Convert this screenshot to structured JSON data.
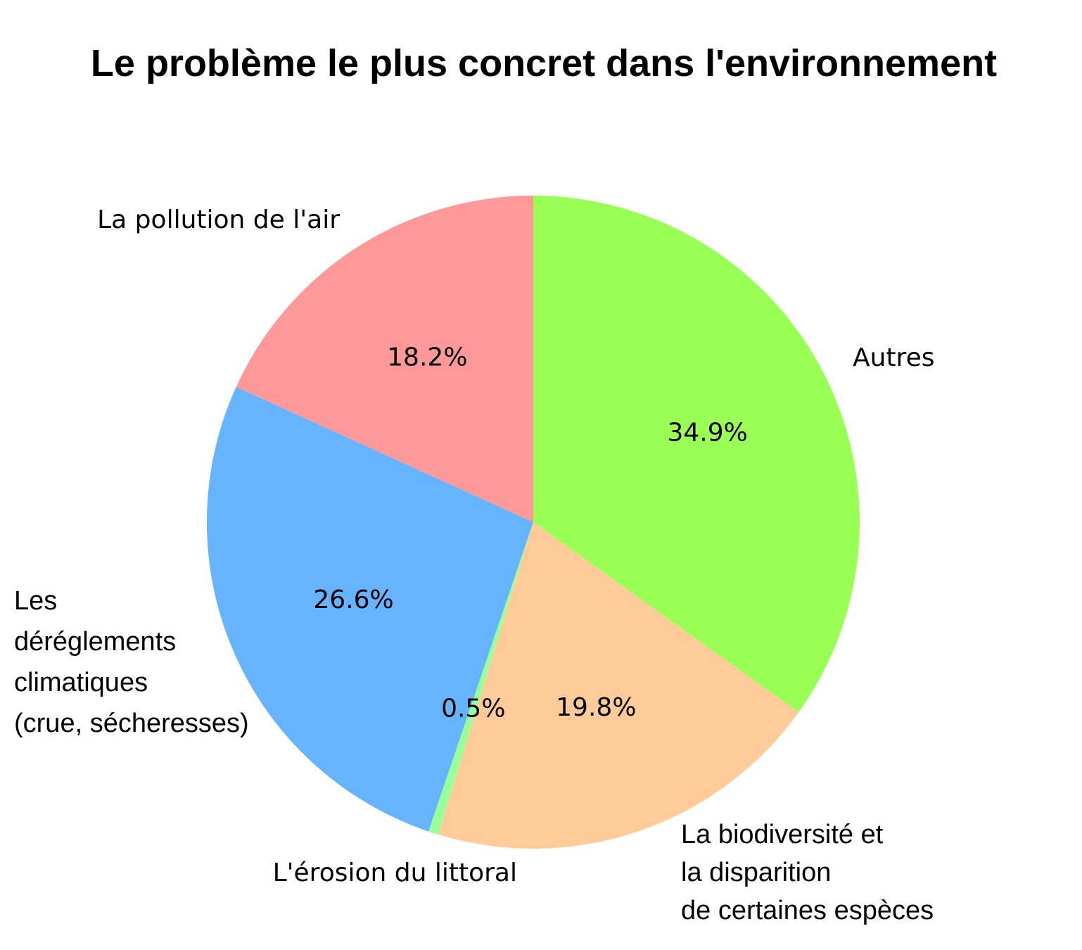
{
  "chart_data": {
    "type": "pie",
    "title": "Le problème le plus concret dans l'environnement",
    "start_angle_deg": 90,
    "direction": "clockwise",
    "slices": [
      {
        "label": "Autres",
        "label_lines": [
          "Autres"
        ],
        "value": 34.9,
        "pct_label": "34.9%",
        "color": "#99ff55"
      },
      {
        "label": "La biodiversité et la disparition de certaines espèces",
        "label_lines": [
          "La biodiversité et",
          "la disparition",
          "de certaines espèces"
        ],
        "value": 19.8,
        "pct_label": "19.8%",
        "color": "#ffcc99"
      },
      {
        "label": "L'érosion du littoral",
        "label_lines": [
          "L'érosion du littoral"
        ],
        "value": 0.5,
        "pct_label": "0.5%",
        "color": "#99ff99"
      },
      {
        "label": "Les déréglements climatiques (crue, sécheresses)",
        "label_lines": [
          "Les",
          "déréglements",
          "climatiques",
          "(crue, sécheresses)"
        ],
        "value": 26.6,
        "pct_label": "26.6%",
        "color": "#66b3ff"
      },
      {
        "label": "La pollution de l'air",
        "label_lines": [
          "La pollution de l'air"
        ],
        "value": 18.2,
        "pct_label": "18.2%",
        "color": "#ff9999"
      }
    ]
  }
}
